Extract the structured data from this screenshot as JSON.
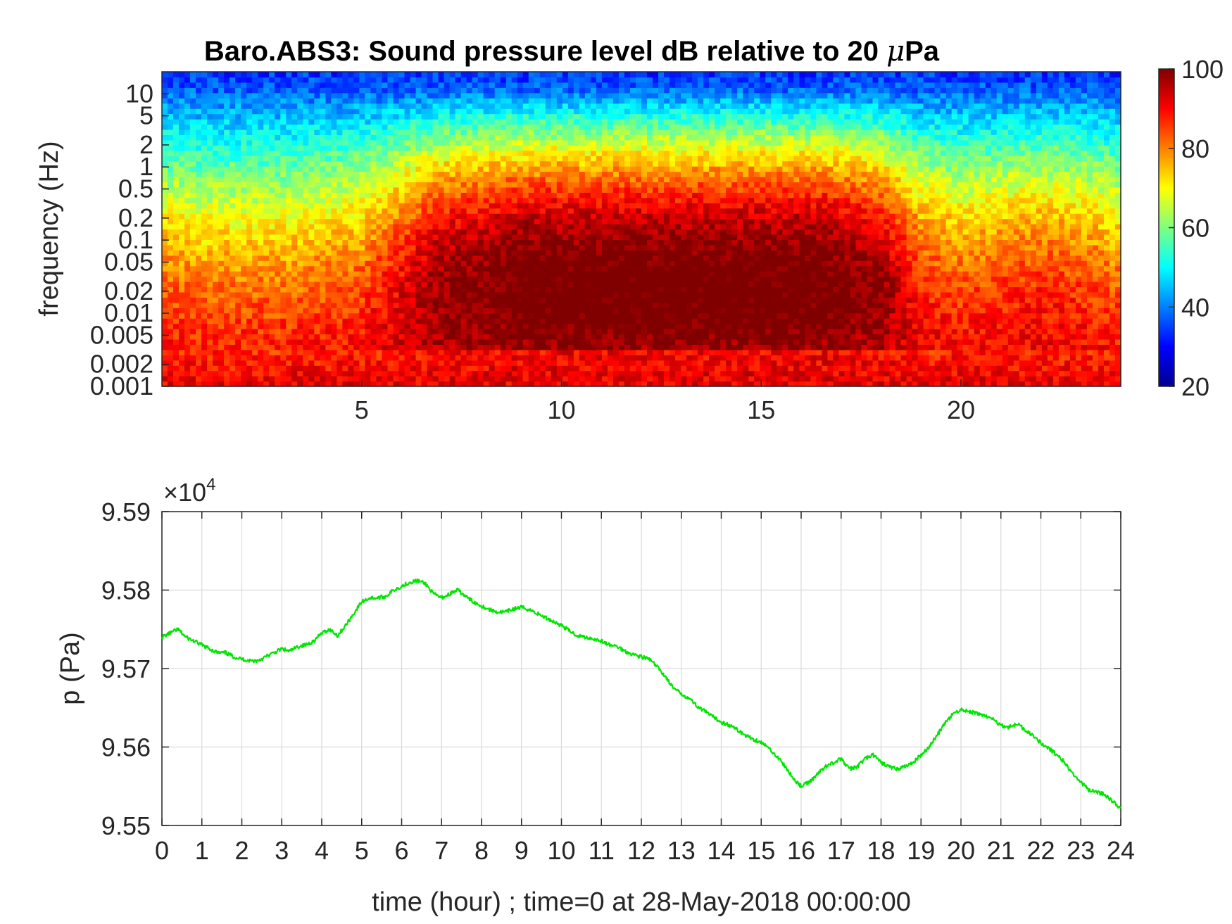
{
  "colors": {
    "line": "#00e600",
    "axis": "#262626",
    "grid": "#d9d9d9",
    "background": "#ffffff"
  },
  "chart_data": [
    {
      "type": "heatmap",
      "title_prefix": "Baro.ABS3: Sound pressure level dB relative to 20 ",
      "title_mu": "μ",
      "title_suffix": "Pa",
      "xlabel": "",
      "ylabel": "frequency (Hz)",
      "x_range": [
        0,
        24
      ],
      "x_ticks": [
        "5",
        "10",
        "15",
        "20"
      ],
      "y_scale": "log",
      "y_range": [
        0.001,
        20
      ],
      "y_ticks": [
        "0.001",
        "0.002",
        "0.005",
        "0.01",
        "0.02",
        "0.05",
        "0.1",
        "0.2",
        "0.5",
        "1",
        "2",
        "5",
        "10"
      ],
      "colormap": "jet",
      "colorbar_range": [
        20,
        100
      ],
      "colorbar_ticks": [
        "20",
        "40",
        "60",
        "80",
        "100"
      ],
      "activity_profile": {
        "hours": [
          0,
          1,
          2,
          3,
          4,
          5,
          6,
          7,
          8,
          9,
          10,
          11,
          12,
          13,
          14,
          15,
          16,
          17,
          18,
          19,
          20,
          21,
          22,
          23,
          24
        ],
        "activity": [
          0.3,
          0.25,
          0.25,
          0.25,
          0.3,
          0.35,
          0.6,
          0.85,
          0.9,
          1.0,
          1.0,
          1.0,
          1.0,
          1.0,
          1.0,
          1.0,
          1.0,
          0.95,
          0.85,
          0.45,
          0.35,
          0.4,
          0.45,
          0.4,
          0.3
        ]
      },
      "grid": false
    },
    {
      "type": "line",
      "title": "",
      "xlabel": "time (hour) ; time=0 at 28-May-2018 00:00:00",
      "ylabel": "p (Pa)",
      "y_multiplier_label": "×10",
      "y_multiplier_exp": "4",
      "xlim": [
        0,
        24
      ],
      "ylim": [
        95500,
        95900
      ],
      "x_ticks": [
        "0",
        "1",
        "2",
        "3",
        "4",
        "5",
        "6",
        "7",
        "8",
        "9",
        "10",
        "11",
        "12",
        "13",
        "14",
        "15",
        "16",
        "17",
        "18",
        "19",
        "20",
        "21",
        "22",
        "23",
        "24"
      ],
      "y_ticks": [
        "9.55",
        "9.56",
        "9.57",
        "9.58",
        "9.59"
      ],
      "grid": true,
      "series": [
        {
          "x": [
            0,
            0.2,
            0.4,
            0.6,
            0.8,
            1.0,
            1.2,
            1.4,
            1.6,
            1.8,
            2.0,
            2.2,
            2.4,
            2.6,
            2.8,
            3.0,
            3.2,
            3.4,
            3.6,
            3.8,
            4.0,
            4.2,
            4.4,
            4.6,
            4.8,
            5.0,
            5.2,
            5.4,
            5.6,
            5.8,
            6.0,
            6.2,
            6.4,
            6.6,
            6.8,
            7.0,
            7.2,
            7.4,
            7.6,
            7.8,
            8.0,
            8.2,
            8.4,
            8.6,
            8.8,
            9.0,
            9.2,
            9.4,
            9.6,
            9.8,
            10.0,
            10.2,
            10.4,
            10.6,
            10.8,
            11.0,
            11.2,
            11.4,
            11.6,
            11.8,
            12.0,
            12.2,
            12.4,
            12.6,
            12.8,
            13.0,
            13.2,
            13.4,
            13.6,
            13.8,
            14.0,
            14.2,
            14.4,
            14.6,
            14.8,
            15.0,
            15.2,
            15.4,
            15.6,
            15.8,
            16.0,
            16.2,
            16.4,
            16.6,
            16.8,
            17.0,
            17.2,
            17.4,
            17.6,
            17.8,
            18.0,
            18.2,
            18.4,
            18.6,
            18.8,
            19.0,
            19.2,
            19.4,
            19.6,
            19.8,
            20.0,
            20.2,
            20.4,
            20.6,
            20.8,
            21.0,
            21.2,
            21.4,
            21.6,
            21.8,
            22.0,
            22.2,
            22.4,
            22.6,
            22.8,
            23.0,
            23.2,
            23.4,
            23.6,
            23.8,
            24.0
          ],
          "values": [
            95740,
            95745,
            95750,
            95740,
            95735,
            95730,
            95725,
            95720,
            95720,
            95715,
            95712,
            95710,
            95710,
            95715,
            95720,
            95725,
            95722,
            95728,
            95730,
            95735,
            95745,
            95750,
            95742,
            95755,
            95770,
            95785,
            95790,
            95790,
            95792,
            95800,
            95805,
            95810,
            95812,
            95808,
            95795,
            95790,
            95795,
            95800,
            95792,
            95785,
            95780,
            95775,
            95772,
            95772,
            95776,
            95778,
            95775,
            95770,
            95765,
            95760,
            95755,
            95748,
            95742,
            95740,
            95738,
            95735,
            95730,
            95728,
            95722,
            95718,
            95715,
            95712,
            95702,
            95690,
            95675,
            95668,
            95662,
            95652,
            95645,
            95638,
            95632,
            95628,
            95622,
            95615,
            95610,
            95606,
            95598,
            95588,
            95575,
            95560,
            95550,
            95555,
            95565,
            95575,
            95580,
            95585,
            95572,
            95575,
            95585,
            95590,
            95580,
            95575,
            95572,
            95575,
            95580,
            95590,
            95600,
            95615,
            95630,
            95642,
            95648,
            95645,
            95643,
            95640,
            95635,
            95628,
            95625,
            95630,
            95622,
            95615,
            95605,
            95598,
            95590,
            95580,
            95565,
            95555,
            95545,
            95542,
            95540,
            95530,
            95522
          ]
        }
      ]
    }
  ]
}
